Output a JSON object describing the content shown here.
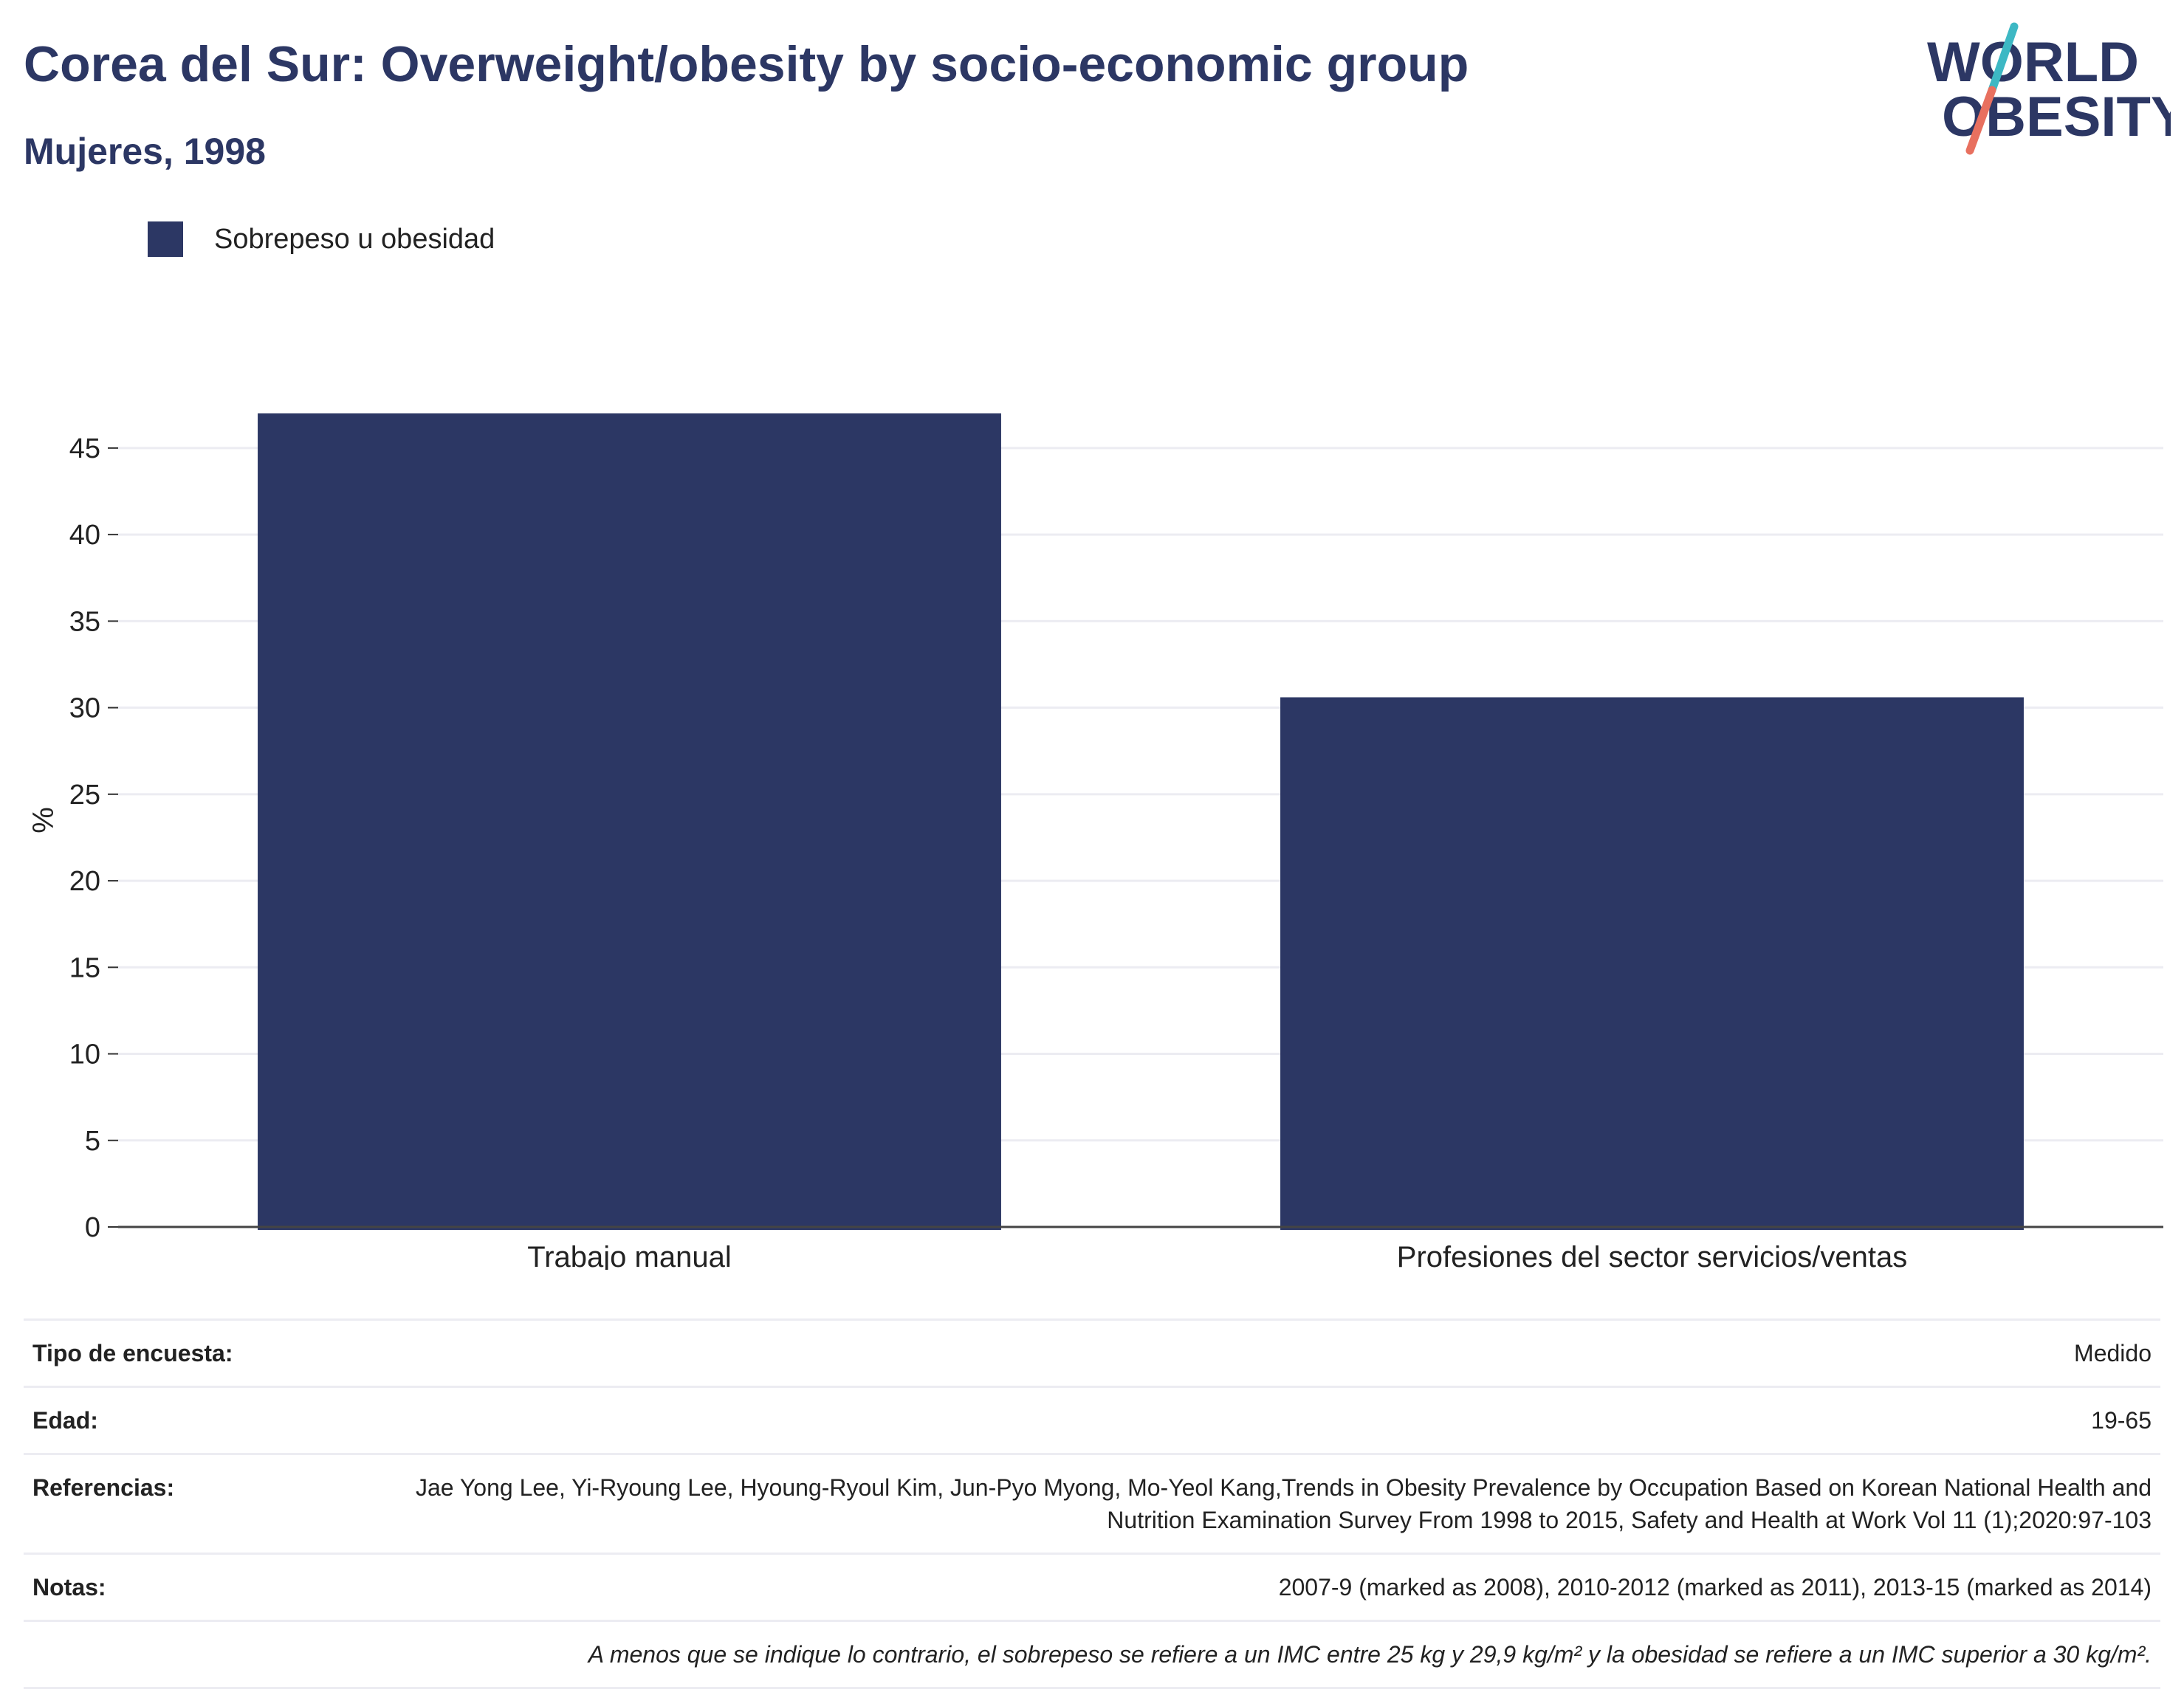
{
  "header": {
    "title": "Corea del Sur: Overweight/obesity by socio-economic group",
    "subtitle": "Mujeres, 1998"
  },
  "logo": {
    "line1": "WORLD",
    "line2": "OBESITY"
  },
  "colors": {
    "bar": "#2c3764",
    "title": "#2c3764",
    "logo_teal": "#3db8c4",
    "logo_coral": "#e8705f"
  },
  "chart_data": {
    "type": "bar",
    "categories": [
      "Trabajo manual",
      "Profesiones del sector servicios/ventas"
    ],
    "series": [
      {
        "name": "Sobrepeso u obesidad",
        "values": [
          47.0,
          30.6
        ]
      }
    ],
    "ylabel": "%",
    "ylim": [
      0,
      47
    ],
    "yticks": [
      0,
      5,
      10,
      15,
      20,
      25,
      30,
      35,
      40,
      45
    ],
    "grid": true,
    "legend_position": "top-left"
  },
  "info": {
    "rows": [
      {
        "key": "Tipo de encuesta:",
        "value": "Medido"
      },
      {
        "key": "Edad:",
        "value": "19-65"
      },
      {
        "key": "Referencias:",
        "value": "Jae Yong Lee, Yi-Ryoung Lee, Hyoung-Ryoul Kim, Jun-Pyo Myong, Mo-Yeol Kang,Trends in Obesity Prevalence by Occupation Based on Korean National Health and Nutrition Examination Survey From 1998 to 2015, Safety and Health at Work Vol 11 (1);2020:97-103"
      },
      {
        "key": "Notas:",
        "value": "2007-9 (marked as 2008), 2010-2012 (marked as 2011), 2013-15 (marked as 2014)"
      }
    ],
    "footnote": "A menos que se indique lo contrario, el sobrepeso se refiere a un IMC entre 25 kg y 29,9 kg/m² y la obesidad se refiere a un IMC superior a 30 kg/m²."
  }
}
